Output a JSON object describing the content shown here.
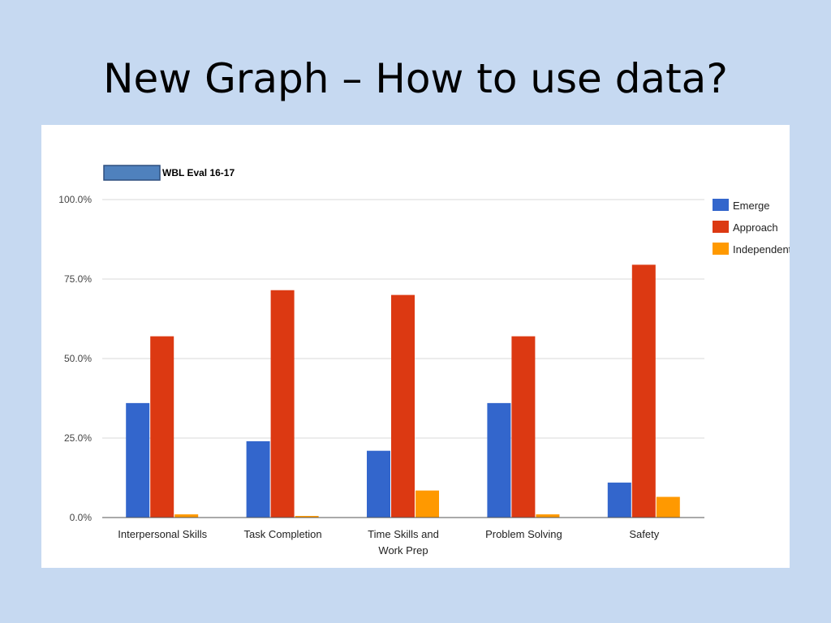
{
  "slide": {
    "title": "New Graph – How to use data?"
  },
  "colors": {
    "background": "#c6d9f1",
    "panel": "#ffffff",
    "grid": "#d9d9d9",
    "axis": "#555555",
    "title_box": "#4f81bd"
  },
  "chart_data": {
    "type": "bar",
    "title": "WBL Eval 16-17",
    "categories": [
      [
        "Interpersonal Skills"
      ],
      [
        "Task Completion"
      ],
      [
        "Time Skills and",
        "Work Prep"
      ],
      [
        "Problem Solving"
      ],
      [
        "Safety"
      ]
    ],
    "series": [
      {
        "name": "Emerge",
        "color": "#3366cc",
        "values": [
          36.0,
          24.0,
          21.0,
          36.0,
          11.0
        ]
      },
      {
        "name": "Approach",
        "color": "#dc3912",
        "values": [
          57.0,
          71.5,
          70.0,
          57.0,
          79.5
        ]
      },
      {
        "name": "Independent",
        "color": "#ff9900",
        "values": [
          1.0,
          0.5,
          8.5,
          1.0,
          6.5
        ]
      }
    ],
    "ylim": [
      0,
      100
    ],
    "yticks": [
      "0.0%",
      "25.0%",
      "50.0%",
      "75.0%",
      "100.0%"
    ],
    "grid": true,
    "legend_position": "right"
  }
}
